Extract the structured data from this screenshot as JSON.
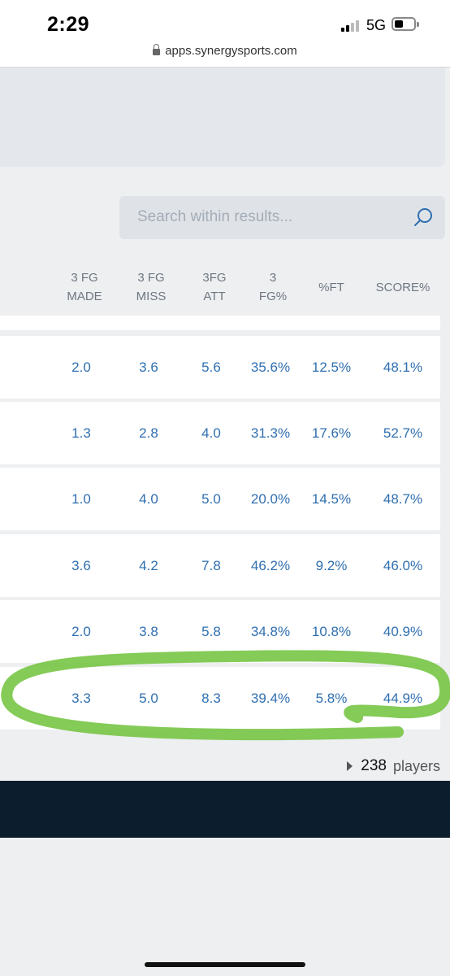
{
  "status_bar": {
    "time": "2:29",
    "network": "5G"
  },
  "browser": {
    "url": "apps.synergysports.com"
  },
  "search": {
    "placeholder": "Search within results..."
  },
  "table": {
    "headers": [
      {
        "line1": "3 FG",
        "line2": "MADE"
      },
      {
        "line1": "3 FG",
        "line2": "MISS"
      },
      {
        "line1": "3FG",
        "line2": "ATT"
      },
      {
        "line1": "3",
        "line2": "FG%"
      },
      {
        "line1": "%FT",
        "line2": ""
      },
      {
        "line1": "SCORE%",
        "line2": ""
      }
    ],
    "rows": [
      [
        "2.0",
        "3.6",
        "5.6",
        "35.6%",
        "12.5%",
        "48.1%"
      ],
      [
        "1.3",
        "2.8",
        "4.0",
        "31.3%",
        "17.6%",
        "52.7%"
      ],
      [
        "1.0",
        "4.0",
        "5.0",
        "20.0%",
        "14.5%",
        "48.7%"
      ],
      [
        "3.6",
        "4.2",
        "7.8",
        "46.2%",
        "9.2%",
        "46.0%"
      ],
      [
        "2.0",
        "3.8",
        "5.8",
        "34.8%",
        "10.8%",
        "40.9%"
      ],
      [
        "3.3",
        "5.0",
        "8.3",
        "39.4%",
        "5.8%",
        "44.9%"
      ]
    ]
  },
  "footer": {
    "count": "238",
    "label": "players"
  },
  "colors": {
    "accent": "#2f6fb0",
    "highlight": "#6fc23a",
    "dark_bar": "#0c1d2d"
  }
}
